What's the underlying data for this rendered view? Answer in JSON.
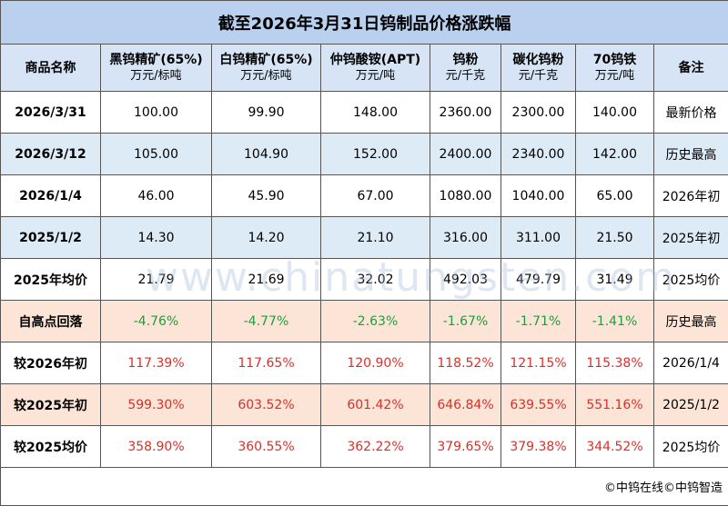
{
  "title": "截至2026年3月31日钨制品价格涨跌幅",
  "header": [
    {
      "name": "商品名称"
    },
    {
      "name": "黑钨精矿(65%)",
      "unit": "万元/标吨"
    },
    {
      "name": "白钨精矿(65%)",
      "unit": "万元/标吨"
    },
    {
      "name": "仲钨酸铵(APT)",
      "unit": "万元/吨"
    },
    {
      "name": "钨粉",
      "unit": "元/千克"
    },
    {
      "name": "碳化钨粉",
      "unit": "元/千克"
    },
    {
      "name": "70钨铁",
      "unit": "万元/吨"
    },
    {
      "name": "备注"
    }
  ],
  "rows": [
    {
      "fill": "#ffffff",
      "color": "#000000",
      "cells": [
        "2026/3/31",
        "100.00",
        "99.90",
        "148.00",
        "2360.00",
        "2300.00",
        "140.00",
        "最新价格"
      ]
    },
    {
      "fill": "#ddebf7",
      "color": "#000000",
      "cells": [
        "2026/3/12",
        "105.00",
        "104.90",
        "152.00",
        "2400.00",
        "2340.00",
        "142.00",
        "历史最高"
      ]
    },
    {
      "fill": "#ffffff",
      "color": "#000000",
      "cells": [
        "2026/1/4",
        "46.00",
        "45.90",
        "67.00",
        "1080.00",
        "1040.00",
        "65.00",
        "2026年初"
      ]
    },
    {
      "fill": "#ddebf7",
      "color": "#000000",
      "cells": [
        "2025/1/2",
        "14.30",
        "14.20",
        "21.10",
        "316.00",
        "311.00",
        "21.50",
        "2025年初"
      ]
    },
    {
      "fill": "#ffffff",
      "color": "#000000",
      "cells": [
        "2025年均价",
        "21.79",
        "21.69",
        "32.02",
        "492.03",
        "479.79",
        "31.49",
        "2025均价"
      ]
    },
    {
      "fill": "#fce4d6",
      "color": "#1e9e3e",
      "cells": [
        "自高点回落",
        "-4.76%",
        "-4.77%",
        "-2.63%",
        "-1.67%",
        "-1.71%",
        "-1.41%",
        "历史最高"
      ]
    },
    {
      "fill": "#ffffff",
      "color": "#d9302a",
      "cells": [
        "较2026年初",
        "117.39%",
        "117.65%",
        "120.90%",
        "118.52%",
        "121.15%",
        "115.38%",
        "2026/1/4"
      ]
    },
    {
      "fill": "#fce4d6",
      "color": "#d9302a",
      "cells": [
        "较2025年初",
        "599.30%",
        "603.52%",
        "601.42%",
        "646.84%",
        "639.55%",
        "551.16%",
        "2025/1/2"
      ]
    },
    {
      "fill": "#ffffff",
      "color": "#d9302a",
      "cells": [
        "较2025均价",
        "358.90%",
        "360.55%",
        "362.22%",
        "379.65%",
        "379.38%",
        "344.52%",
        "2025均价"
      ]
    }
  ],
  "footer": "©中钨在线©中钨智造",
  "watermark": "www.chinatungsten.com"
}
